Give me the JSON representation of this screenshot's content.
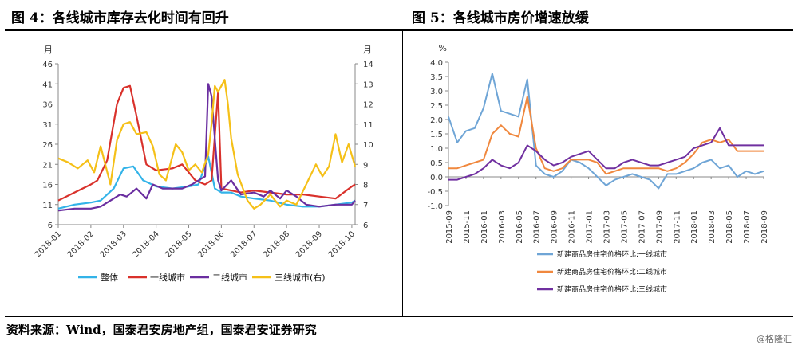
{
  "titles": {
    "left": "图 4：各线城市库存去化时间有回升",
    "right": "图 5：各线城市房价增速放缓"
  },
  "footer": {
    "source": "资料来源：Wind，国泰君安房地产组，国泰君安证券研究",
    "watermark": "@格隆汇"
  },
  "chart_data": [
    {
      "type": "line",
      "left_unit": "月",
      "right_unit": "月",
      "y_left_ticks": [
        "46",
        "41",
        "36",
        "31",
        "26",
        "21",
        "16",
        "11",
        "6"
      ],
      "y_right_ticks": [
        "14",
        "13",
        "12",
        "11",
        "10",
        "9",
        "8",
        "7",
        "6"
      ],
      "ylim_left": [
        6,
        46
      ],
      "ylim_right": [
        6,
        14
      ],
      "x_ticks": [
        "2018-01",
        "2018-02",
        "2018-03",
        "2018-04",
        "2018-05",
        "2018-06",
        "2018-07",
        "2018-08",
        "2018-09",
        "2018-10"
      ],
      "xlim": [
        0,
        9.1
      ],
      "series": [
        {
          "name": "整体",
          "axis": "left",
          "color": "#33b3e8",
          "x": [
            0,
            0.5,
            1,
            1.3,
            1.7,
            2,
            2.3,
            2.6,
            3,
            3.5,
            4,
            4.3,
            4.6,
            4.8,
            5,
            5.3,
            5.6,
            6,
            6.5,
            7,
            7.5,
            8,
            8.5,
            9,
            9.1
          ],
          "y": [
            10,
            11,
            11.5,
            12,
            15,
            20,
            20.5,
            17,
            15.5,
            15,
            15.5,
            16,
            23,
            15,
            14,
            14,
            13,
            12.5,
            12,
            11,
            10.5,
            10.5,
            11,
            11.5,
            12
          ]
        },
        {
          "name": "一线城市",
          "axis": "left",
          "color": "#d9312b",
          "x": [
            0,
            0.5,
            1,
            1.2,
            1.5,
            1.8,
            2,
            2.2,
            2.4,
            2.7,
            3,
            3.5,
            3.8,
            4,
            4.2,
            4.5,
            4.7,
            4.9,
            5,
            5.3,
            5.6,
            6,
            6.5,
            7,
            7.5,
            8,
            8.5,
            9,
            9.1
          ],
          "y": [
            12,
            14,
            16,
            17,
            22,
            36,
            40,
            40.5,
            33,
            21,
            19.5,
            20,
            21,
            19,
            17,
            16,
            17,
            39,
            15,
            14.5,
            14,
            14.5,
            14,
            13.5,
            13.5,
            13,
            12.5,
            15.5,
            16
          ]
        },
        {
          "name": "二线城市",
          "axis": "left",
          "color": "#6a2ea0",
          "x": [
            0,
            0.5,
            1,
            1.3,
            1.6,
            1.9,
            2.1,
            2.4,
            2.7,
            2.9,
            3.2,
            3.5,
            3.8,
            4.1,
            4.5,
            4.6,
            4.7,
            4.9,
            5,
            5.3,
            5.6,
            6,
            6.3,
            6.5,
            6.8,
            7,
            7.3,
            7.6,
            8,
            8.5,
            9,
            9.1
          ],
          "y": [
            9.5,
            10,
            10,
            10.5,
            12,
            13.5,
            13,
            15,
            12.5,
            16,
            15,
            15,
            15,
            16,
            18,
            41,
            38,
            17,
            14.5,
            17,
            13.5,
            14,
            13,
            14.5,
            12.5,
            14.5,
            13,
            11,
            10.5,
            11,
            11,
            12
          ]
        },
        {
          "name": "三线城市(右)",
          "axis": "right",
          "color": "#f5c018",
          "x": [
            0,
            0.3,
            0.6,
            0.9,
            1.1,
            1.3,
            1.6,
            1.8,
            2,
            2.2,
            2.4,
            2.7,
            2.9,
            3.1,
            3.3,
            3.6,
            3.8,
            4,
            4.2,
            4.4,
            4.6,
            4.7,
            4.8,
            4.9,
            5,
            5.1,
            5.2,
            5.3,
            5.5,
            5.8,
            6,
            6.2,
            6.5,
            6.8,
            7,
            7.3,
            7.6,
            7.9,
            8.1,
            8.3,
            8.5,
            8.7,
            8.9,
            9.1
          ],
          "y": [
            9.3,
            9.1,
            8.8,
            9.2,
            8.6,
            9.9,
            8.0,
            10.2,
            11.0,
            11.1,
            10.5,
            10.6,
            9.9,
            8.5,
            8.2,
            10.0,
            9.6,
            8.7,
            9.0,
            8.6,
            9.5,
            11.0,
            12.9,
            12.6,
            12.9,
            13.2,
            12.0,
            10.3,
            8.5,
            7.2,
            6.8,
            7.0,
            7.5,
            6.9,
            7.2,
            7.0,
            8.0,
            9.0,
            8.4,
            8.9,
            10.5,
            9.1,
            10.0,
            8.9
          ]
        }
      ]
    },
    {
      "type": "line",
      "y_unit": "%",
      "y_ticks": [
        "4.0",
        "3.5",
        "3.0",
        "2.5",
        "2.0",
        "1.5",
        "1.0",
        "0.5",
        "0.0",
        "-0.5",
        "-1.0"
      ],
      "ylim": [
        -1.0,
        4.0
      ],
      "x_ticks": [
        "2015-09",
        "2015-11",
        "2016-01",
        "2016-03",
        "2016-05",
        "2016-07",
        "2016-09",
        "2016-11",
        "2017-01",
        "2017-03",
        "2017-05",
        "2017-07",
        "2017-09",
        "2017-11",
        "2018-01",
        "2018-03",
        "2018-05",
        "2018-07",
        "2018-09"
      ],
      "xlim": [
        0,
        36
      ],
      "series": [
        {
          "name": "新建商品房住宅价格环比:一线城市",
          "color": "#6fa5d6",
          "x": [
            0,
            1,
            2,
            3,
            4,
            5,
            6,
            7,
            8,
            9,
            10,
            11,
            12,
            13,
            14,
            15,
            16,
            17,
            18,
            19,
            20,
            21,
            22,
            23,
            24,
            25,
            26,
            27,
            28,
            29,
            30,
            31,
            32,
            33,
            34,
            35,
            36
          ],
          "y": [
            2.1,
            1.2,
            1.6,
            1.7,
            2.4,
            3.6,
            2.3,
            2.2,
            2.1,
            3.4,
            0.4,
            0.1,
            0.0,
            0.2,
            0.6,
            0.5,
            0.3,
            0.0,
            -0.3,
            -0.1,
            0.0,
            0.1,
            0.0,
            -0.1,
            -0.4,
            0.1,
            0.1,
            0.2,
            0.3,
            0.5,
            0.6,
            0.3,
            0.4,
            0.0,
            0.2,
            0.1,
            0.2
          ]
        },
        {
          "name": "新建商品房住宅价格环比:二线城市",
          "color": "#f0883e",
          "x": [
            0,
            1,
            2,
            3,
            4,
            5,
            6,
            7,
            8,
            9,
            10,
            11,
            12,
            13,
            14,
            15,
            16,
            17,
            18,
            19,
            20,
            21,
            22,
            23,
            24,
            25,
            26,
            27,
            28,
            29,
            30,
            31,
            32,
            33,
            34,
            35,
            36
          ],
          "y": [
            0.3,
            0.3,
            0.4,
            0.5,
            0.6,
            1.5,
            1.8,
            1.5,
            1.4,
            2.8,
            1.0,
            0.3,
            0.2,
            0.3,
            0.6,
            0.6,
            0.6,
            0.5,
            0.1,
            0.2,
            0.3,
            0.3,
            0.3,
            0.3,
            0.3,
            0.2,
            0.3,
            0.5,
            0.8,
            1.2,
            1.3,
            1.2,
            1.3,
            0.9,
            0.9,
            0.9,
            0.9
          ]
        },
        {
          "name": "新建商品房住宅价格环比:三线城市",
          "color": "#7030a0",
          "x": [
            0,
            1,
            2,
            3,
            4,
            5,
            6,
            7,
            8,
            9,
            10,
            11,
            12,
            13,
            14,
            15,
            16,
            17,
            18,
            19,
            20,
            21,
            22,
            23,
            24,
            25,
            26,
            27,
            28,
            29,
            30,
            31,
            32,
            33,
            34,
            35,
            36
          ],
          "y": [
            -0.1,
            -0.1,
            0.0,
            0.1,
            0.3,
            0.6,
            0.4,
            0.3,
            0.5,
            1.1,
            0.9,
            0.6,
            0.4,
            0.5,
            0.7,
            0.8,
            0.9,
            0.6,
            0.3,
            0.3,
            0.5,
            0.6,
            0.5,
            0.4,
            0.4,
            0.5,
            0.6,
            0.7,
            1.0,
            1.1,
            1.2,
            1.7,
            1.1,
            1.1,
            1.1,
            1.1,
            1.1
          ]
        }
      ]
    }
  ]
}
